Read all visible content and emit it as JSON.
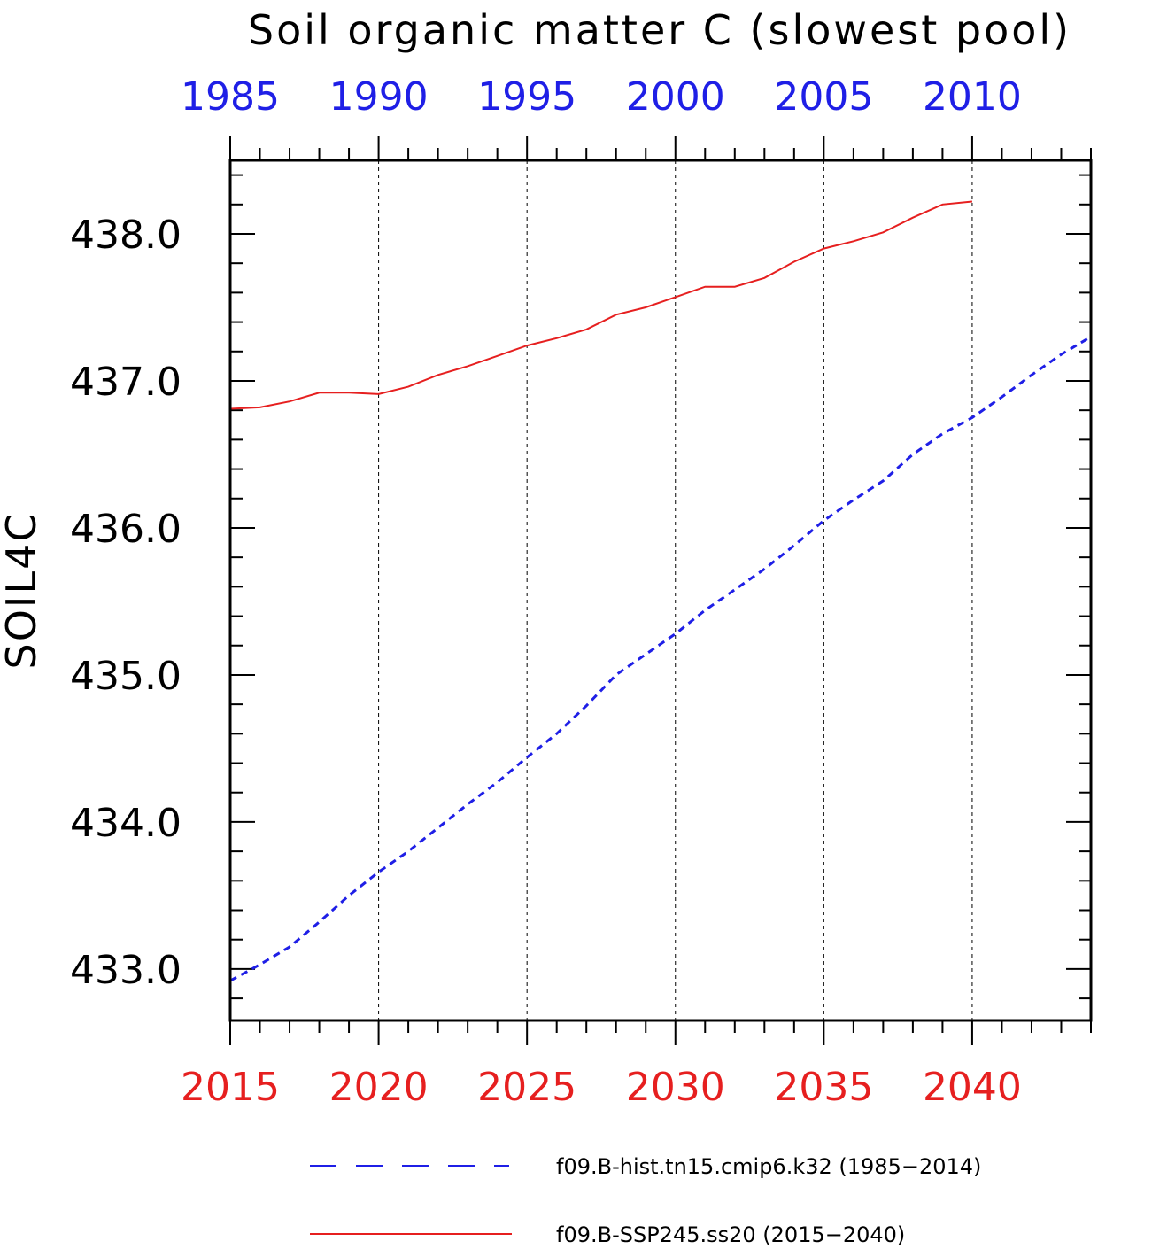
{
  "chart_data": {
    "type": "line",
    "title": "Soil organic matter C (slowest pool)",
    "ylabel": "SOIL4C",
    "ylim": [
      432.65,
      438.5
    ],
    "yticks_major": [
      433.0,
      434.0,
      435.0,
      436.0,
      437.0,
      438.0
    ],
    "ytick_labels": [
      "433.0",
      "434.0",
      "435.0",
      "436.0",
      "437.0",
      "438.0"
    ],
    "bottom_axis": {
      "range": [
        2015,
        2044
      ],
      "tick_labels": [
        "2015",
        "2020",
        "2025",
        "2030",
        "2035",
        "2040"
      ],
      "tick_values": [
        2015,
        2020,
        2025,
        2030,
        2035,
        2040
      ],
      "color": "#e61f1f"
    },
    "top_axis": {
      "range": [
        1985,
        2014
      ],
      "tick_labels": [
        "1985",
        "1990",
        "1995",
        "2000",
        "2005",
        "2010"
      ],
      "tick_values": [
        1985,
        1990,
        1995,
        2000,
        2005,
        2010
      ],
      "color": "#1f1fe6"
    },
    "vertical_grid": [
      2020,
      2025,
      2030,
      2035,
      2040
    ],
    "series": [
      {
        "name": "f09.B-hist.tn15.cmip6.k32 (1985-2014)",
        "axis": "top",
        "color": "#1f1fe6",
        "style": "dashed",
        "x": [
          1985,
          1986,
          1987,
          1988,
          1989,
          1990,
          1991,
          1992,
          1993,
          1994,
          1995,
          1996,
          1997,
          1998,
          1999,
          2000,
          2001,
          2002,
          2003,
          2004,
          2005,
          2006,
          2007,
          2008,
          2009,
          2010,
          2011,
          2012,
          2013,
          2014
        ],
        "y": [
          432.92,
          433.03,
          433.15,
          433.32,
          433.5,
          433.66,
          433.8,
          433.96,
          434.12,
          434.27,
          434.44,
          434.6,
          434.79,
          435.0,
          435.14,
          435.28,
          435.44,
          435.58,
          435.72,
          435.88,
          436.05,
          436.19,
          436.32,
          436.5,
          436.64,
          436.75,
          436.89,
          437.04,
          437.18,
          437.3
        ]
      },
      {
        "name": "f09.B-SSP245.ss20 (2015-2040)",
        "axis": "bottom",
        "color": "#e61f1f",
        "style": "solid",
        "x": [
          2015,
          2016,
          2017,
          2018,
          2019,
          2020,
          2021,
          2022,
          2023,
          2024,
          2025,
          2026,
          2027,
          2028,
          2029,
          2030,
          2031,
          2032,
          2033,
          2034,
          2035,
          2036,
          2037,
          2038,
          2039,
          2040
        ],
        "y": [
          436.81,
          436.82,
          436.86,
          436.92,
          436.92,
          436.91,
          436.96,
          437.04,
          437.1,
          437.17,
          437.24,
          437.29,
          437.35,
          437.45,
          437.5,
          437.57,
          437.64,
          437.64,
          437.7,
          437.81,
          437.9,
          437.95,
          438.01,
          438.11,
          438.2,
          438.22
        ]
      }
    ],
    "legend": {
      "placement": "bottom",
      "entries": [
        "f09.B-hist.tn15.cmip6.k32 (1985−2014)",
        "f09.B-SSP245.ss20 (2015−2040)"
      ]
    },
    "grid": "vertical dashed at major bottom ticks"
  }
}
